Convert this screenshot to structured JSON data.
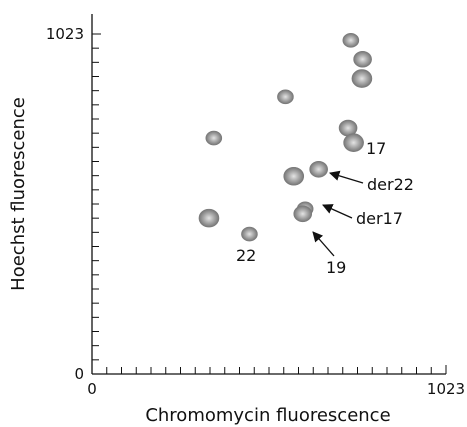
{
  "chart_data": {
    "type": "scatter",
    "title": "",
    "xlabel": "Chromomycin fluorescence",
    "ylabel": "Hoechst fluorescence",
    "xlim": [
      0,
      1023
    ],
    "ylim": [
      0,
      1023
    ],
    "x_ticks": [
      "0",
      "1023"
    ],
    "y_ticks": [
      "0",
      "1023"
    ],
    "points": [
      {
        "x": 748,
        "y": 1004,
        "label": ""
      },
      {
        "x": 782,
        "y": 947,
        "label": ""
      },
      {
        "x": 780,
        "y": 889,
        "label": ""
      },
      {
        "x": 559,
        "y": 834,
        "label": ""
      },
      {
        "x": 740,
        "y": 740,
        "label": ""
      },
      {
        "x": 756,
        "y": 696,
        "label": "17"
      },
      {
        "x": 352,
        "y": 710,
        "label": ""
      },
      {
        "x": 655,
        "y": 616,
        "label": "der22"
      },
      {
        "x": 583,
        "y": 595,
        "label": ""
      },
      {
        "x": 616,
        "y": 497,
        "label": "der17"
      },
      {
        "x": 609,
        "y": 482,
        "label": "19"
      },
      {
        "x": 338,
        "y": 469,
        "label": ""
      },
      {
        "x": 455,
        "y": 421,
        "label": "22"
      }
    ],
    "annotations": [
      {
        "text": "17",
        "point": 5,
        "arrow": false
      },
      {
        "text": "der22",
        "point": 7,
        "arrow": true
      },
      {
        "text": "der17",
        "point": 9,
        "arrow": true
      },
      {
        "text": "19",
        "point": 10,
        "arrow": true
      },
      {
        "text": "22",
        "point": 12,
        "arrow": false
      }
    ]
  }
}
